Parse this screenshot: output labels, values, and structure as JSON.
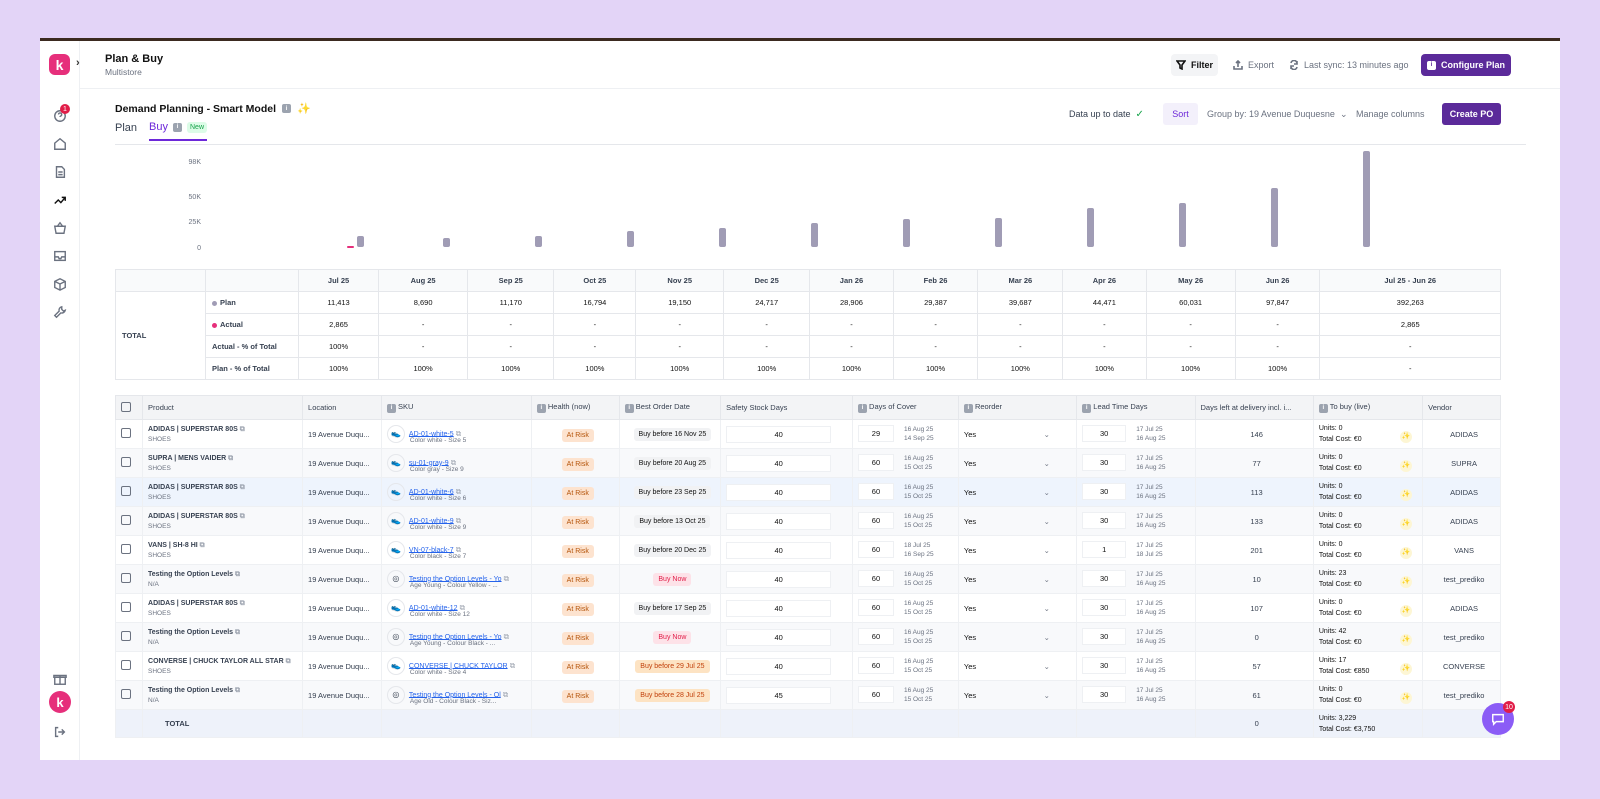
{
  "header": {
    "title": "Plan & Buy",
    "subtitle": "Multistore",
    "filter": "Filter",
    "export": "Export",
    "sync": "Last sync: 13 minutes ago",
    "configure": "Configure Plan",
    "notif_count": "1",
    "chat_count": "10"
  },
  "card": {
    "title": "Demand Planning - Smart Model",
    "tab_plan": "Plan",
    "tab_buy": "Buy",
    "new_badge": "New",
    "status": "Data up to date",
    "sort": "Sort",
    "group_by": "Group by: 19 Avenue Duquesne",
    "manage": "Manage columns",
    "create_po": "Create PO"
  },
  "chart_data": {
    "type": "bar",
    "categories": [
      "Jul 25",
      "Aug 25",
      "Sep 25",
      "Oct 25",
      "Nov 25",
      "Dec 25",
      "Jan 26",
      "Feb 26",
      "Mar 26",
      "Apr 26",
      "May 26",
      "Jun 26"
    ],
    "series": [
      {
        "name": "Plan",
        "values": [
          11413,
          8690,
          11170,
          16794,
          19150,
          24717,
          28906,
          29387,
          39687,
          44471,
          60031,
          97847
        ],
        "color": "#a09cb5"
      },
      {
        "name": "Actual",
        "values": [
          2865,
          null,
          null,
          null,
          null,
          null,
          null,
          null,
          null,
          null,
          null,
          null
        ],
        "color": "#e62f7b"
      }
    ],
    "yticks": [
      "98K",
      "50K",
      "25K",
      "0"
    ],
    "ylim": [
      0,
      98000
    ]
  },
  "summary": {
    "total_label": "TOTAL",
    "columns": [
      "Jul 25",
      "Aug 25",
      "Sep 25",
      "Oct 25",
      "Nov 25",
      "Dec 25",
      "Jan 26",
      "Feb 26",
      "Mar 26",
      "Apr 26",
      "May 26",
      "Jun 26",
      "Jul 25 - Jun 26"
    ],
    "rows": [
      {
        "label": "Plan",
        "values": [
          "11,413",
          "8,690",
          "11,170",
          "16,794",
          "19,150",
          "24,717",
          "28,906",
          "29,387",
          "39,687",
          "44,471",
          "60,031",
          "97,847",
          "392,263"
        ]
      },
      {
        "label": "Actual",
        "values": [
          "2,865",
          "-",
          "-",
          "-",
          "-",
          "-",
          "-",
          "-",
          "-",
          "-",
          "-",
          "-",
          "2,865"
        ]
      },
      {
        "label": "Actual - % of Total",
        "values": [
          "100%",
          "-",
          "-",
          "-",
          "-",
          "-",
          "-",
          "-",
          "-",
          "-",
          "-",
          "-",
          "-"
        ]
      },
      {
        "label": "Plan - % of Total",
        "values": [
          "100%",
          "100%",
          "100%",
          "100%",
          "100%",
          "100%",
          "100%",
          "100%",
          "100%",
          "100%",
          "100%",
          "100%",
          "-"
        ]
      }
    ]
  },
  "table": {
    "headers": [
      "Product",
      "Location",
      "SKU",
      "Health (now)",
      "Best Order Date",
      "Safety Stock Days",
      "Days of Cover",
      "Reorder",
      "Lead Time Days",
      "Days left at delivery incl. i...",
      "To buy (live)",
      "Vendor"
    ],
    "rows": [
      {
        "product": "ADIDAS | SUPERSTAR 80S",
        "cat": "SHOES",
        "loc": "19 Avenue Duqu...",
        "sku": "AD-01-white-5",
        "desc": "Color white - Size 5",
        "health": "At Risk",
        "order": "Buy before 16 Nov 25",
        "otype": "gray",
        "ss": "40",
        "doc": "29",
        "d1": "16 Aug 25",
        "d2": "14 Sep 25",
        "reorder": "Yes",
        "lt": "30",
        "l1": "17 Jul 25",
        "l2": "16 Aug 25",
        "left": "146",
        "units": "Units:  0",
        "cost": "Total Cost: €0",
        "vendor": "ADIDAS"
      },
      {
        "product": "SUPRA | MENS VAIDER",
        "cat": "SHOES",
        "loc": "19 Avenue Duqu...",
        "sku": "su-01-gray-9",
        "desc": "Color gray - Size 9",
        "health": "At Risk",
        "order": "Buy before 20 Aug 25",
        "otype": "gray",
        "ss": "40",
        "doc": "60",
        "d1": "16 Aug 25",
        "d2": "15 Oct 25",
        "reorder": "Yes",
        "lt": "30",
        "l1": "17 Jul 25",
        "l2": "16 Aug 25",
        "left": "77",
        "units": "Units:  0",
        "cost": "Total Cost: €0",
        "vendor": "SUPRA"
      },
      {
        "product": "ADIDAS | SUPERSTAR 80S",
        "cat": "SHOES",
        "loc": "19 Avenue Duqu...",
        "sku": "AD-01-white-6",
        "desc": "Color white - Size 6",
        "health": "At Risk",
        "order": "Buy before 23 Sep 25",
        "otype": "gray",
        "ss": "40",
        "doc": "60",
        "d1": "16 Aug 25",
        "d2": "15 Oct 25",
        "reorder": "Yes",
        "lt": "30",
        "l1": "17 Jul 25",
        "l2": "16 Aug 25",
        "left": "113",
        "units": "Units:  0",
        "cost": "Total Cost: €0",
        "vendor": "ADIDAS"
      },
      {
        "product": "ADIDAS | SUPERSTAR 80S",
        "cat": "SHOES",
        "loc": "19 Avenue Duqu...",
        "sku": "AD-01-white-9",
        "desc": "Color white - Size 9",
        "health": "At Risk",
        "order": "Buy before 13 Oct 25",
        "otype": "gray",
        "ss": "40",
        "doc": "60",
        "d1": "16 Aug 25",
        "d2": "15 Oct 25",
        "reorder": "Yes",
        "lt": "30",
        "l1": "17 Jul 25",
        "l2": "16 Aug 25",
        "left": "133",
        "units": "Units:  0",
        "cost": "Total Cost: €0",
        "vendor": "ADIDAS"
      },
      {
        "product": "VANS | SH-8 HI",
        "cat": "SHOES",
        "loc": "19 Avenue Duqu...",
        "sku": "VN-07-black-7",
        "desc": "Color black - Size 7",
        "health": "At Risk",
        "order": "Buy before 20 Dec 25",
        "otype": "gray",
        "ss": "40",
        "doc": "60",
        "d1": "18 Jul 25",
        "d2": "16 Sep 25",
        "reorder": "Yes",
        "lt": "1",
        "l1": "17 Jul 25",
        "l2": "18 Jul 25",
        "left": "201",
        "units": "Units:  0",
        "cost": "Total Cost: €0",
        "vendor": "VANS"
      },
      {
        "product": "Testing the Option Levels",
        "cat": "N/A",
        "loc": "19 Avenue Duqu...",
        "sku": "Testing the Option Levels - Yo",
        "desc": "Age Young - Colour Yellow - ...",
        "health": "At Risk",
        "order": "Buy Now",
        "otype": "pink",
        "ss": "40",
        "doc": "60",
        "d1": "16 Aug 25",
        "d2": "15 Oct 25",
        "reorder": "Yes",
        "lt": "30",
        "l1": "17 Jul 25",
        "l2": "16 Aug 25",
        "left": "10",
        "units": "Units:  23",
        "cost": "Total Cost: €0",
        "vendor": "test_prediko"
      },
      {
        "product": "ADIDAS | SUPERSTAR 80S",
        "cat": "SHOES",
        "loc": "19 Avenue Duqu...",
        "sku": "AD-01-white-12",
        "desc": "Color white - Size 12",
        "health": "At Risk",
        "order": "Buy before 17 Sep 25",
        "otype": "gray",
        "ss": "40",
        "doc": "60",
        "d1": "16 Aug 25",
        "d2": "15 Oct 25",
        "reorder": "Yes",
        "lt": "30",
        "l1": "17 Jul 25",
        "l2": "16 Aug 25",
        "left": "107",
        "units": "Units:  0",
        "cost": "Total Cost: €0",
        "vendor": "ADIDAS"
      },
      {
        "product": "Testing the Option Levels",
        "cat": "N/A",
        "loc": "19 Avenue Duqu...",
        "sku": "Testing the Option Levels - Yo",
        "desc": "Age Young - Colour Black - ...",
        "health": "At Risk",
        "order": "Buy Now",
        "otype": "pink",
        "ss": "40",
        "doc": "60",
        "d1": "16 Aug 25",
        "d2": "15 Oct 25",
        "reorder": "Yes",
        "lt": "30",
        "l1": "17 Jul 25",
        "l2": "16 Aug 25",
        "left": "0",
        "units": "Units:  42",
        "cost": "Total Cost: €0",
        "vendor": "test_prediko"
      },
      {
        "product": "CONVERSE | CHUCK TAYLOR ALL STAR",
        "cat": "SHOES",
        "loc": "19 Avenue Duqu...",
        "sku": "CONVERSE | CHUCK TAYLOR",
        "desc": "Color white - Size 4",
        "health": "At Risk",
        "order": "Buy before 29 Jul 25",
        "otype": "orange",
        "ss": "40",
        "doc": "60",
        "d1": "16 Aug 25",
        "d2": "15 Oct 25",
        "reorder": "Yes",
        "lt": "30",
        "l1": "17 Jul 25",
        "l2": "16 Aug 25",
        "left": "57",
        "units": "Units:  17",
        "cost": "Total Cost: €850",
        "vendor": "CONVERSE"
      },
      {
        "product": "Testing the Option Levels",
        "cat": "N/A",
        "loc": "19 Avenue Duqu...",
        "sku": "Testing the Option Levels - Ol",
        "desc": "Age Old - Colour Black - Siz...",
        "health": "At Risk",
        "order": "Buy before 28 Jul 25",
        "otype": "orange",
        "ss": "45",
        "doc": "60",
        "d1": "16 Aug 25",
        "d2": "15 Oct 25",
        "reorder": "Yes",
        "lt": "30",
        "l1": "17 Jul 25",
        "l2": "16 Aug 25",
        "left": "61",
        "units": "Units:  0",
        "cost": "Total Cost: €0",
        "vendor": "test_prediko"
      }
    ],
    "total": {
      "label": "TOTAL",
      "left": "0",
      "units": "Units:  3,229",
      "cost": "Total Cost: €3,750"
    }
  }
}
